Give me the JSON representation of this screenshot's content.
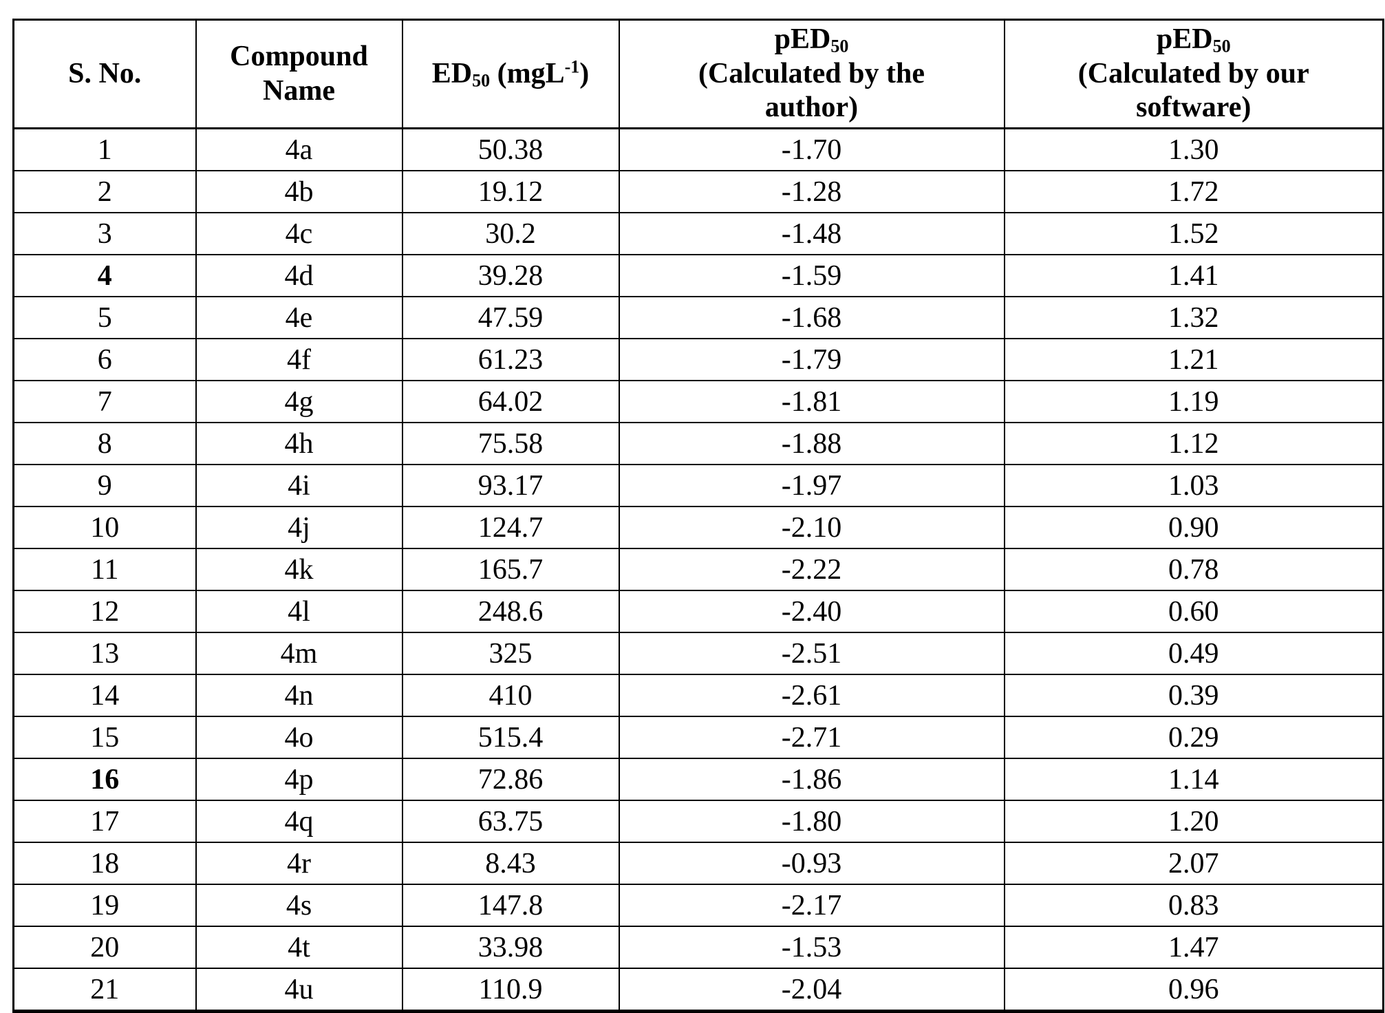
{
  "colors": {
    "background": "#ffffff",
    "border": "#000000",
    "text": "#000000"
  },
  "table": {
    "header": {
      "sno": "S. No.",
      "compound_line1": "Compound",
      "compound_line2": "Name",
      "ed50_main": "ED",
      "ed50_sub": "50",
      "ed50_unit_open": " (mgL",
      "ed50_unit_sup": "-1",
      "ed50_unit_close": ")",
      "ped50_author_main": "pED",
      "ped50_author_sub": "50",
      "ped50_author_line2": "(Calculated by the",
      "ped50_author_line3": "author)",
      "ped50_software_main": "pED",
      "ped50_software_sub": "50",
      "ped50_software_line2": "(Calculated by our",
      "ped50_software_line3": "software)"
    },
    "rows": [
      {
        "sno": "1",
        "bold": false,
        "compound": "4a",
        "ed50": "50.38",
        "ped50_author": "-1.70",
        "ped50_software": "1.30"
      },
      {
        "sno": "2",
        "bold": false,
        "compound": "4b",
        "ed50": "19.12",
        "ped50_author": "-1.28",
        "ped50_software": "1.72"
      },
      {
        "sno": "3",
        "bold": false,
        "compound": "4c",
        "ed50": "30.2",
        "ped50_author": "-1.48",
        "ped50_software": "1.52"
      },
      {
        "sno": "4",
        "bold": true,
        "compound": "4d",
        "ed50": "39.28",
        "ped50_author": "-1.59",
        "ped50_software": "1.41"
      },
      {
        "sno": "5",
        "bold": false,
        "compound": "4e",
        "ed50": "47.59",
        "ped50_author": "-1.68",
        "ped50_software": "1.32"
      },
      {
        "sno": "6",
        "bold": false,
        "compound": "4f",
        "ed50": "61.23",
        "ped50_author": "-1.79",
        "ped50_software": "1.21"
      },
      {
        "sno": "7",
        "bold": false,
        "compound": "4g",
        "ed50": "64.02",
        "ped50_author": "-1.81",
        "ped50_software": "1.19"
      },
      {
        "sno": "8",
        "bold": false,
        "compound": "4h",
        "ed50": "75.58",
        "ped50_author": "-1.88",
        "ped50_software": "1.12"
      },
      {
        "sno": "9",
        "bold": false,
        "compound": "4i",
        "ed50": "93.17",
        "ped50_author": "-1.97",
        "ped50_software": "1.03"
      },
      {
        "sno": "10",
        "bold": false,
        "compound": "4j",
        "ed50": "124.7",
        "ped50_author": "-2.10",
        "ped50_software": "0.90"
      },
      {
        "sno": "11",
        "bold": false,
        "compound": "4k",
        "ed50": "165.7",
        "ped50_author": "-2.22",
        "ped50_software": "0.78"
      },
      {
        "sno": "12",
        "bold": false,
        "compound": "4l",
        "ed50": "248.6",
        "ped50_author": "-2.40",
        "ped50_software": "0.60"
      },
      {
        "sno": "13",
        "bold": false,
        "compound": "4m",
        "ed50": "325",
        "ped50_author": "-2.51",
        "ped50_software": "0.49"
      },
      {
        "sno": "14",
        "bold": false,
        "compound": "4n",
        "ed50": "410",
        "ped50_author": "-2.61",
        "ped50_software": "0.39"
      },
      {
        "sno": "15",
        "bold": false,
        "compound": "4o",
        "ed50": "515.4",
        "ped50_author": "-2.71",
        "ped50_software": "0.29"
      },
      {
        "sno": "16",
        "bold": true,
        "compound": "4p",
        "ed50": "72.86",
        "ped50_author": "-1.86",
        "ped50_software": "1.14"
      },
      {
        "sno": "17",
        "bold": false,
        "compound": "4q",
        "ed50": "63.75",
        "ped50_author": "-1.80",
        "ped50_software": "1.20"
      },
      {
        "sno": "18",
        "bold": false,
        "compound": "4r",
        "ed50": "8.43",
        "ped50_author": "-0.93",
        "ped50_software": "2.07"
      },
      {
        "sno": "19",
        "bold": false,
        "compound": "4s",
        "ed50": "147.8",
        "ped50_author": "-2.17",
        "ped50_software": "0.83"
      },
      {
        "sno": "20",
        "bold": false,
        "compound": "4t",
        "ed50": "33.98",
        "ped50_author": "-1.53",
        "ped50_software": "1.47"
      },
      {
        "sno": "21",
        "bold": false,
        "compound": "4u",
        "ed50": "110.9",
        "ped50_author": "-2.04",
        "ped50_software": "0.96"
      }
    ]
  }
}
